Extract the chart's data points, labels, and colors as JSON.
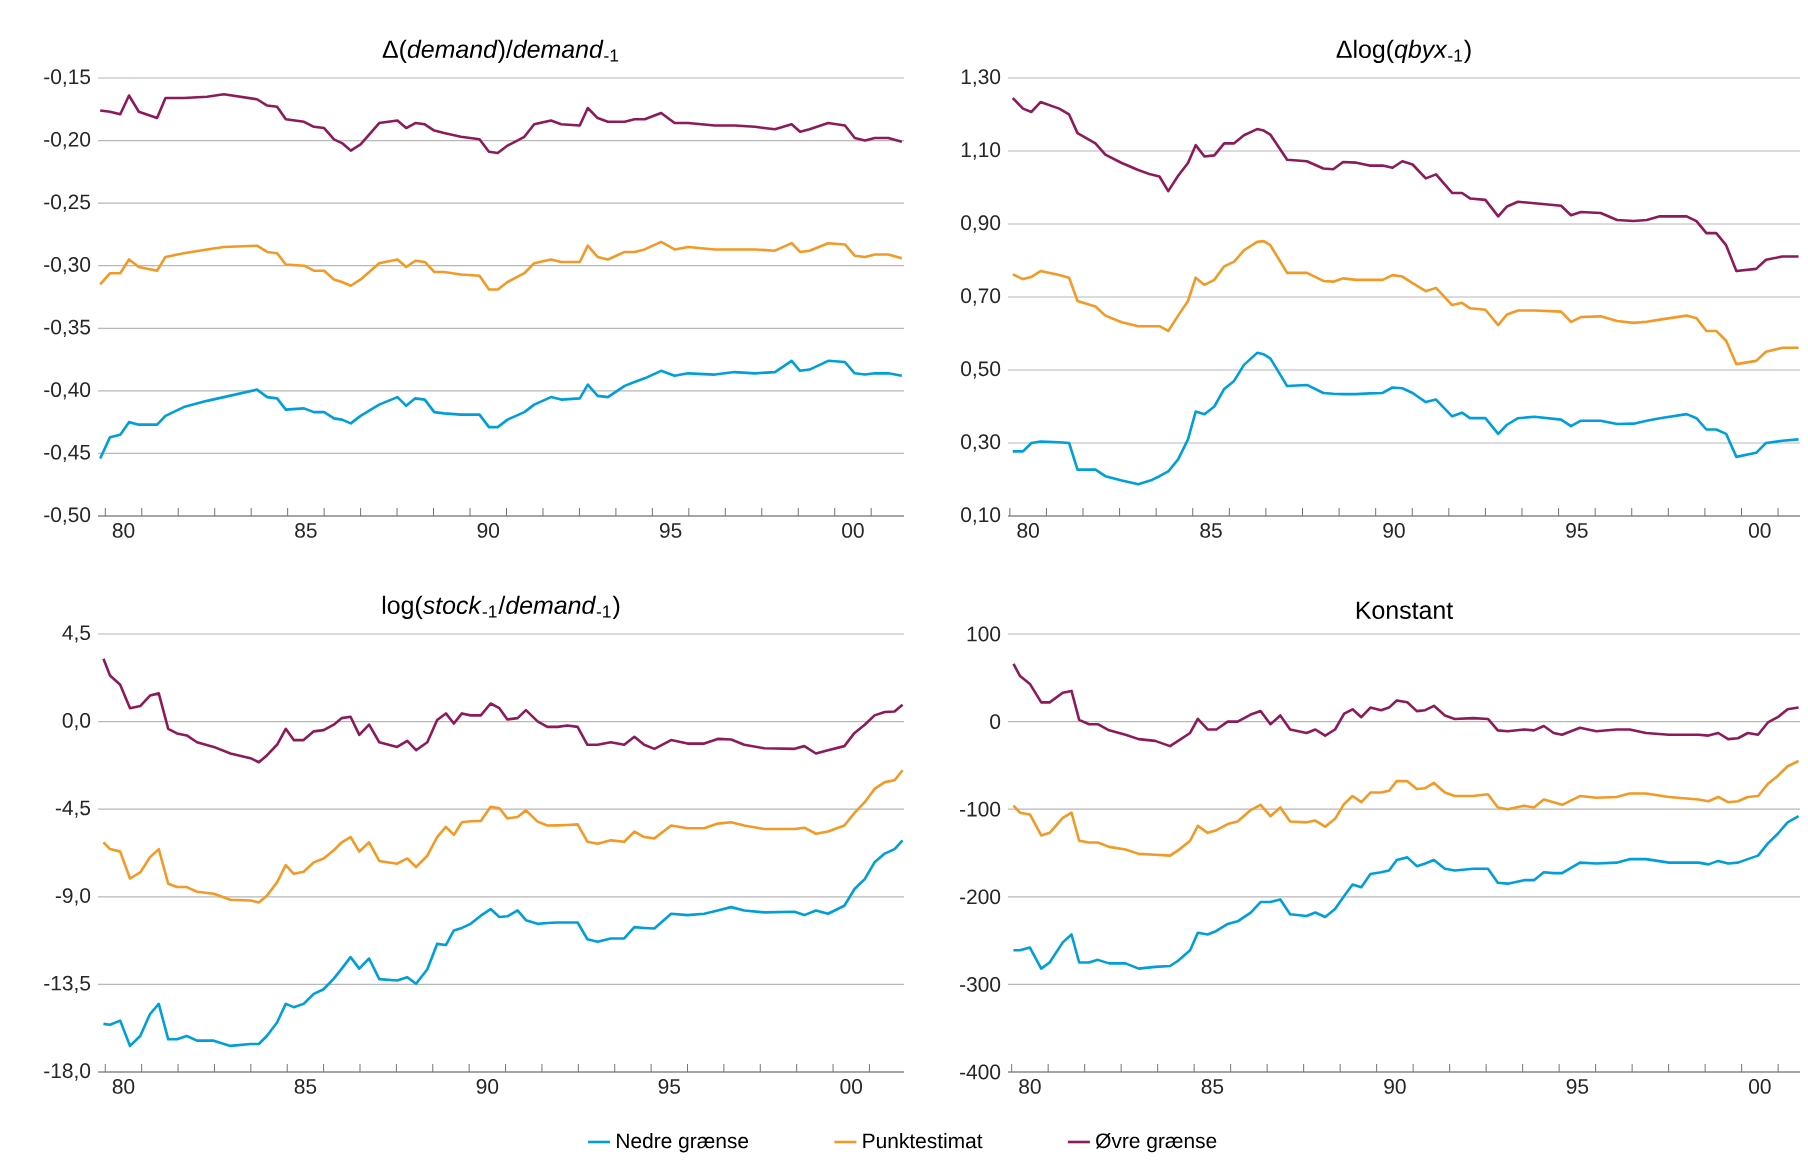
{
  "chart_data": [
    {
      "type": "line",
      "title": "Δ(*demand*)/*demand*$_{-1}$",
      "x": [
        1979.36,
        1979.63,
        1979.91,
        1980.15,
        1980.42,
        1980.92,
        1981.15,
        1981.65,
        1982.29,
        1982.75,
        1983.66,
        1983.94,
        1984.21,
        1984.45,
        1984.95,
        1985.22,
        1985.5,
        1985.77,
        1985.99,
        1986.23,
        1986.5,
        1987.01,
        1987.51,
        1987.75,
        1988.0,
        1988.26,
        1988.52,
        1988.79,
        1989.25,
        1989.76,
        1990.02,
        1990.26,
        1990.53,
        1990.99,
        1991.26,
        1991.72,
        1992.0,
        1992.51,
        1992.73,
        1993.0,
        1993.28,
        1993.74,
        1994.01,
        1994.29,
        1994.74,
        1995.11,
        1995.48,
        1996.21,
        1996.76,
        1997.31,
        1997.86,
        1998.32,
        1998.55,
        1998.81,
        1999.32,
        1999.78,
        2000.05,
        2000.33,
        2000.6,
        2000.97,
        2001.34
      ],
      "series": [
        {
          "color": "#009fda",
          "values": [
            -0.454,
            -0.437,
            -0.435,
            -0.425,
            -0.427,
            -0.427,
            -0.42,
            -0.413,
            -0.408,
            -0.405,
            -0.399,
            -0.405,
            -0.406,
            -0.415,
            -0.414,
            -0.417,
            -0.417,
            -0.422,
            -0.423,
            -0.426,
            -0.42,
            -0.411,
            -0.405,
            -0.412,
            -0.406,
            -0.407,
            -0.417,
            -0.418,
            -0.419,
            -0.419,
            -0.429,
            -0.429,
            -0.423,
            -0.417,
            -0.411,
            -0.405,
            -0.407,
            -0.406,
            -0.395,
            -0.404,
            -0.405,
            -0.396,
            -0.393,
            -0.39,
            -0.384,
            -0.388,
            -0.386,
            -0.387,
            -0.385,
            -0.386,
            -0.385,
            -0.376,
            -0.384,
            -0.383,
            -0.376,
            -0.377,
            -0.386,
            -0.387,
            -0.386,
            -0.386,
            -0.388
          ]
        },
        {
          "color": "#f39a26",
          "values": [
            -0.315,
            -0.306,
            -0.306,
            -0.295,
            -0.301,
            -0.304,
            -0.293,
            -0.29,
            -0.287,
            -0.285,
            -0.284,
            -0.289,
            -0.29,
            -0.299,
            -0.3,
            -0.304,
            -0.304,
            -0.311,
            -0.313,
            -0.316,
            -0.311,
            -0.298,
            -0.295,
            -0.301,
            -0.296,
            -0.297,
            -0.305,
            -0.305,
            -0.307,
            -0.308,
            -0.319,
            -0.319,
            -0.313,
            -0.306,
            -0.298,
            -0.295,
            -0.297,
            -0.297,
            -0.284,
            -0.293,
            -0.295,
            -0.289,
            -0.289,
            -0.287,
            -0.281,
            -0.287,
            -0.285,
            -0.287,
            -0.287,
            -0.287,
            -0.288,
            -0.282,
            -0.289,
            -0.288,
            -0.282,
            -0.283,
            -0.292,
            -0.293,
            -0.291,
            -0.291,
            -0.294
          ]
        },
        {
          "color": "#8d1a5a",
          "values": [
            -0.176,
            -0.177,
            -0.179,
            -0.164,
            -0.177,
            -0.182,
            -0.166,
            -0.166,
            -0.165,
            -0.163,
            -0.167,
            -0.172,
            -0.173,
            -0.183,
            -0.185,
            -0.189,
            -0.19,
            -0.199,
            -0.202,
            -0.208,
            -0.203,
            -0.186,
            -0.184,
            -0.19,
            -0.186,
            -0.187,
            -0.192,
            -0.194,
            -0.197,
            -0.199,
            -0.209,
            -0.21,
            -0.204,
            -0.197,
            -0.187,
            -0.184,
            -0.187,
            -0.188,
            -0.174,
            -0.182,
            -0.185,
            -0.185,
            -0.183,
            -0.183,
            -0.178,
            -0.186,
            -0.186,
            -0.188,
            -0.188,
            -0.189,
            -0.191,
            -0.187,
            -0.193,
            -0.191,
            -0.186,
            -0.188,
            -0.198,
            -0.2,
            -0.198,
            -0.198,
            -0.201
          ]
        }
      ],
      "xlim": [
        1979.3,
        2001.4
      ],
      "ylim": [
        -0.5,
        -0.15
      ],
      "xticks": [
        {
          "value": 1979.5,
          "label": null
        },
        {
          "value": 1980,
          "label": "80"
        },
        {
          "value": 1980.5,
          "label": null
        },
        {
          "value": 1981.5,
          "label": null
        },
        {
          "value": 1982.5,
          "label": null
        },
        {
          "value": 1983.5,
          "label": null
        },
        {
          "value": 1984.5,
          "label": null
        },
        {
          "value": 1985,
          "label": "85"
        },
        {
          "value": 1985.5,
          "label": null
        },
        {
          "value": 1986.5,
          "label": null
        },
        {
          "value": 1987.5,
          "label": null
        },
        {
          "value": 1988.5,
          "label": null
        },
        {
          "value": 1989.5,
          "label": null
        },
        {
          "value": 1990,
          "label": "90"
        },
        {
          "value": 1990.5,
          "label": null
        },
        {
          "value": 1991.5,
          "label": null
        },
        {
          "value": 1992.5,
          "label": null
        },
        {
          "value": 1993.5,
          "label": null
        },
        {
          "value": 1994.5,
          "label": null
        },
        {
          "value": 1995,
          "label": "95"
        },
        {
          "value": 1995.5,
          "label": null
        },
        {
          "value": 1996.5,
          "label": null
        },
        {
          "value": 1997.5,
          "label": null
        },
        {
          "value": 1998.5,
          "label": null
        },
        {
          "value": 1999.5,
          "label": null
        },
        {
          "value": 2000,
          "label": "00"
        },
        {
          "value": 2000.5,
          "label": null
        }
      ],
      "yticks": [
        {
          "value": -0.5,
          "label": "-0,50"
        },
        {
          "value": -0.45,
          "label": "-0,45"
        },
        {
          "value": -0.4,
          "label": "-0,40"
        },
        {
          "value": -0.35,
          "label": "-0,35"
        },
        {
          "value": -0.3,
          "label": "-0,30"
        },
        {
          "value": -0.25,
          "label": "-0,25"
        },
        {
          "value": -0.2,
          "label": "-0,20"
        },
        {
          "value": -0.15,
          "label": "-0,15"
        }
      ],
      "grid": "y"
    },
    {
      "type": "line",
      "title": "Δlog(*qbyx*$_{-1}$)",
      "x": [
        1979.58,
        1979.86,
        1980.09,
        1980.34,
        1980.85,
        1981.12,
        1981.35,
        1981.84,
        1982.11,
        1982.56,
        1983.01,
        1983.34,
        1983.59,
        1983.83,
        1984.1,
        1984.37,
        1984.58,
        1984.82,
        1985.09,
        1985.36,
        1985.63,
        1985.9,
        1986.26,
        1986.44,
        1986.62,
        1987.08,
        1987.62,
        1988.07,
        1988.34,
        1988.61,
        1988.97,
        1989.33,
        1989.69,
        1989.96,
        1990.23,
        1990.51,
        1990.87,
        1991.15,
        1991.59,
        1991.86,
        1992.08,
        1992.5,
        1992.85,
        1993.09,
        1993.39,
        1993.84,
        1994.57,
        1994.84,
        1995.11,
        1995.65,
        1996.1,
        1996.55,
        1996.91,
        1997.27,
        1998.0,
        1998.27,
        1998.54,
        1998.81,
        1999.08,
        1999.36,
        1999.9,
        2000.17,
        2000.62,
        2001.06
      ],
      "series": [
        {
          "color": "#009fda",
          "values": [
            0.277,
            0.277,
            0.3,
            0.304,
            0.302,
            0.3,
            0.227,
            0.227,
            0.209,
            0.197,
            0.187,
            0.197,
            0.209,
            0.222,
            0.255,
            0.31,
            0.386,
            0.379,
            0.4,
            0.448,
            0.47,
            0.514,
            0.547,
            0.543,
            0.532,
            0.456,
            0.459,
            0.437,
            0.435,
            0.434,
            0.434,
            0.436,
            0.437,
            0.452,
            0.45,
            0.437,
            0.412,
            0.419,
            0.373,
            0.383,
            0.368,
            0.368,
            0.325,
            0.35,
            0.368,
            0.372,
            0.364,
            0.346,
            0.361,
            0.361,
            0.352,
            0.353,
            0.361,
            0.368,
            0.379,
            0.368,
            0.337,
            0.337,
            0.325,
            0.262,
            0.273,
            0.3,
            0.306,
            0.31
          ]
        },
        {
          "color": "#f39a26",
          "values": [
            0.762,
            0.749,
            0.755,
            0.771,
            0.76,
            0.753,
            0.689,
            0.674,
            0.649,
            0.631,
            0.62,
            0.62,
            0.62,
            0.607,
            0.649,
            0.689,
            0.753,
            0.733,
            0.747,
            0.784,
            0.797,
            0.828,
            0.851,
            0.853,
            0.842,
            0.766,
            0.766,
            0.744,
            0.742,
            0.751,
            0.747,
            0.747,
            0.747,
            0.76,
            0.756,
            0.738,
            0.716,
            0.725,
            0.678,
            0.684,
            0.669,
            0.665,
            0.623,
            0.652,
            0.663,
            0.663,
            0.66,
            0.632,
            0.645,
            0.647,
            0.634,
            0.629,
            0.632,
            0.638,
            0.649,
            0.642,
            0.607,
            0.607,
            0.58,
            0.516,
            0.525,
            0.55,
            0.561,
            0.561
          ]
        },
        {
          "color": "#8d1a5a",
          "values": [
            1.245,
            1.216,
            1.207,
            1.234,
            1.216,
            1.2,
            1.149,
            1.121,
            1.09,
            1.067,
            1.048,
            1.036,
            1.03,
            0.99,
            1.032,
            1.067,
            1.116,
            1.085,
            1.088,
            1.121,
            1.121,
            1.143,
            1.16,
            1.156,
            1.145,
            1.076,
            1.072,
            1.052,
            1.05,
            1.07,
            1.068,
            1.06,
            1.06,
            1.054,
            1.072,
            1.063,
            1.025,
            1.036,
            0.985,
            0.985,
            0.97,
            0.966,
            0.921,
            0.948,
            0.961,
            0.957,
            0.95,
            0.924,
            0.933,
            0.93,
            0.911,
            0.908,
            0.911,
            0.921,
            0.921,
            0.908,
            0.875,
            0.875,
            0.842,
            0.771,
            0.777,
            0.802,
            0.811,
            0.811
          ]
        }
      ],
      "xlim": [
        1979.45,
        2001.1
      ],
      "ylim": [
        0.1,
        1.3
      ],
      "xticks": [
        {
          "value": 1979.5,
          "label": null
        },
        {
          "value": 1980,
          "label": "80"
        },
        {
          "value": 1980.5,
          "label": null
        },
        {
          "value": 1981.5,
          "label": null
        },
        {
          "value": 1982.5,
          "label": null
        },
        {
          "value": 1983.5,
          "label": null
        },
        {
          "value": 1984.5,
          "label": null
        },
        {
          "value": 1985,
          "label": "85"
        },
        {
          "value": 1985.5,
          "label": null
        },
        {
          "value": 1986.5,
          "label": null
        },
        {
          "value": 1987.5,
          "label": null
        },
        {
          "value": 1988.5,
          "label": null
        },
        {
          "value": 1989.5,
          "label": null
        },
        {
          "value": 1990,
          "label": "90"
        },
        {
          "value": 1990.5,
          "label": null
        },
        {
          "value": 1991.5,
          "label": null
        },
        {
          "value": 1992.5,
          "label": null
        },
        {
          "value": 1993.5,
          "label": null
        },
        {
          "value": 1994.5,
          "label": null
        },
        {
          "value": 1995,
          "label": "95"
        },
        {
          "value": 1995.5,
          "label": null
        },
        {
          "value": 1996.5,
          "label": null
        },
        {
          "value": 1997.5,
          "label": null
        },
        {
          "value": 1998.5,
          "label": null
        },
        {
          "value": 1999.5,
          "label": null
        },
        {
          "value": 2000,
          "label": "00"
        },
        {
          "value": 2000.5,
          "label": null
        }
      ],
      "yticks": [
        {
          "value": 0.1,
          "label": "0,10"
        },
        {
          "value": 0.3,
          "label": "0,30"
        },
        {
          "value": 0.5,
          "label": "0,50"
        },
        {
          "value": 0.7,
          "label": "0,70"
        },
        {
          "value": 0.9,
          "label": "0,90"
        },
        {
          "value": 1.1,
          "label": "1,10"
        },
        {
          "value": 1.3,
          "label": "1,30"
        }
      ],
      "grid": "y"
    },
    {
      "type": "line",
      "title": "log(*stock*$_{-1}$/*demand*$_{-1}$)",
      "x": [
        1979.45,
        1979.63,
        1979.91,
        1980.18,
        1980.46,
        1980.73,
        1980.97,
        1981.23,
        1981.47,
        1981.74,
        1982.02,
        1982.48,
        1982.94,
        1983.49,
        1983.72,
        1983.94,
        1984.22,
        1984.46,
        1984.68,
        1984.95,
        1985.23,
        1985.5,
        1985.78,
        1986.0,
        1986.24,
        1986.48,
        1986.75,
        1987.03,
        1987.52,
        1987.8,
        1988.04,
        1988.35,
        1988.62,
        1988.86,
        1989.08,
        1989.3,
        1989.54,
        1989.82,
        1990.09,
        1990.33,
        1990.55,
        1990.83,
        1991.06,
        1991.38,
        1991.65,
        1991.93,
        1992.2,
        1992.48,
        1992.75,
        1993.03,
        1993.39,
        1993.76,
        1994.04,
        1994.31,
        1994.59,
        1995.05,
        1995.5,
        1995.96,
        1996.33,
        1996.7,
        1997.06,
        1997.61,
        1998.44,
        1998.71,
        1999.03,
        1999.36,
        1999.81,
        2000.09,
        2000.37,
        2000.64,
        2000.92,
        2001.19,
        2001.41
      ],
      "series": [
        {
          "name": "Nedre grænse",
          "color": "#009fda",
          "values": [
            -15.53,
            -15.57,
            -15.36,
            -16.66,
            -16.15,
            -15.02,
            -14.5,
            -16.32,
            -16.32,
            -16.15,
            -16.39,
            -16.39,
            -16.66,
            -16.56,
            -16.56,
            -16.15,
            -15.46,
            -14.5,
            -14.67,
            -14.5,
            -13.99,
            -13.75,
            -13.2,
            -12.69,
            -12.1,
            -12.69,
            -12.17,
            -13.23,
            -13.3,
            -13.13,
            -13.47,
            -12.72,
            -11.42,
            -11.48,
            -10.73,
            -10.6,
            -10.39,
            -9.97,
            -9.63,
            -10.04,
            -10.0,
            -9.7,
            -10.2,
            -10.39,
            -10.35,
            -10.32,
            -10.32,
            -10.32,
            -11.18,
            -11.31,
            -11.14,
            -11.14,
            -10.56,
            -10.6,
            -10.63,
            -9.87,
            -9.94,
            -9.87,
            -9.7,
            -9.53,
            -9.7,
            -9.8,
            -9.77,
            -9.94,
            -9.7,
            -9.87,
            -9.46,
            -8.6,
            -8.09,
            -7.23,
            -6.78,
            -6.55,
            -6.1
          ]
        },
        {
          "name": "Punktestimat",
          "color": "#f39a26",
          "values": [
            -6.2,
            -6.55,
            -6.68,
            -8.06,
            -7.75,
            -6.96,
            -6.55,
            -8.33,
            -8.5,
            -8.5,
            -8.74,
            -8.84,
            -9.15,
            -9.19,
            -9.29,
            -8.95,
            -8.26,
            -7.37,
            -7.82,
            -7.71,
            -7.23,
            -7.03,
            -6.61,
            -6.2,
            -5.93,
            -6.68,
            -6.2,
            -7.16,
            -7.3,
            -7.03,
            -7.47,
            -6.89,
            -5.93,
            -5.41,
            -5.82,
            -5.17,
            -5.12,
            -5.1,
            -4.38,
            -4.45,
            -4.97,
            -4.9,
            -4.56,
            -5.14,
            -5.34,
            -5.33,
            -5.31,
            -5.28,
            -6.17,
            -6.27,
            -6.1,
            -6.17,
            -5.65,
            -5.93,
            -6.0,
            -5.34,
            -5.48,
            -5.48,
            -5.24,
            -5.17,
            -5.34,
            -5.52,
            -5.52,
            -5.45,
            -5.76,
            -5.65,
            -5.34,
            -4.69,
            -4.14,
            -3.46,
            -3.11,
            -3.01,
            -2.5
          ]
        },
        {
          "name": "Øvre grænse",
          "color": "#8d1a5a",
          "values": [
            3.23,
            2.37,
            1.89,
            0.69,
            0.8,
            1.34,
            1.45,
            -0.37,
            -0.61,
            -0.71,
            -1.06,
            -1.3,
            -1.64,
            -1.88,
            -2.09,
            -1.74,
            -1.19,
            -0.37,
            -0.95,
            -0.95,
            -0.5,
            -0.44,
            -0.16,
            0.18,
            0.25,
            -0.68,
            -0.16,
            -1.06,
            -1.3,
            -0.99,
            -1.47,
            -1.06,
            0.08,
            0.42,
            -0.1,
            0.42,
            0.32,
            0.32,
            0.93,
            0.69,
            0.11,
            0.18,
            0.59,
            0.01,
            -0.27,
            -0.27,
            -0.2,
            -0.27,
            -1.19,
            -1.19,
            -1.06,
            -1.19,
            -0.78,
            -1.19,
            -1.4,
            -0.95,
            -1.13,
            -1.13,
            -0.89,
            -0.92,
            -1.19,
            -1.37,
            -1.4,
            -1.26,
            -1.64,
            -1.47,
            -1.26,
            -0.58,
            -0.16,
            0.32,
            0.49,
            0.52,
            0.86
          ]
        }
      ],
      "xlim": [
        1979.3,
        2001.45
      ],
      "ylim": [
        -18,
        4.5
      ],
      "xticks": [
        {
          "value": 1979.5,
          "label": null
        },
        {
          "value": 1980,
          "label": "80"
        },
        {
          "value": 1980.5,
          "label": null
        },
        {
          "value": 1981.5,
          "label": null
        },
        {
          "value": 1982.5,
          "label": null
        },
        {
          "value": 1983.5,
          "label": null
        },
        {
          "value": 1984.5,
          "label": null
        },
        {
          "value": 1985,
          "label": "85"
        },
        {
          "value": 1985.5,
          "label": null
        },
        {
          "value": 1986.5,
          "label": null
        },
        {
          "value": 1987.5,
          "label": null
        },
        {
          "value": 1988.5,
          "label": null
        },
        {
          "value": 1989.5,
          "label": null
        },
        {
          "value": 1990,
          "label": "90"
        },
        {
          "value": 1990.5,
          "label": null
        },
        {
          "value": 1991.5,
          "label": null
        },
        {
          "value": 1992.5,
          "label": null
        },
        {
          "value": 1993.5,
          "label": null
        },
        {
          "value": 1994.5,
          "label": null
        },
        {
          "value": 1995,
          "label": "95"
        },
        {
          "value": 1995.5,
          "label": null
        },
        {
          "value": 1996.5,
          "label": null
        },
        {
          "value": 1997.5,
          "label": null
        },
        {
          "value": 1998.5,
          "label": null
        },
        {
          "value": 1999.5,
          "label": null
        },
        {
          "value": 2000,
          "label": "00"
        },
        {
          "value": 2000.5,
          "label": null
        }
      ],
      "yticks": [
        {
          "value": -18,
          "label": "-18,0"
        },
        {
          "value": -13.5,
          "label": "-13,5"
        },
        {
          "value": -9,
          "label": "-9,0"
        },
        {
          "value": -4.5,
          "label": "-4,5"
        },
        {
          "value": 0,
          "label": "0,0"
        },
        {
          "value": 4.5,
          "label": "4,5"
        }
      ],
      "grid": "y",
      "legend": "bottom"
    },
    {
      "type": "line",
      "title": "Konstant",
      "x": [
        1979.55,
        1979.73,
        1980.0,
        1980.31,
        1980.54,
        1980.9,
        1981.14,
        1981.35,
        1981.62,
        1981.86,
        1982.17,
        1982.62,
        1982.98,
        1983.43,
        1983.84,
        1984.06,
        1984.39,
        1984.6,
        1984.87,
        1985.11,
        1985.42,
        1985.69,
        1986.05,
        1986.32,
        1986.59,
        1986.86,
        1987.13,
        1987.58,
        1987.82,
        1988.09,
        1988.36,
        1988.61,
        1988.84,
        1989.08,
        1989.33,
        1989.62,
        1989.84,
        1990.05,
        1990.34,
        1990.6,
        1990.83,
        1991.07,
        1991.37,
        1991.64,
        1992.15,
        1992.55,
        1992.82,
        1993.09,
        1993.54,
        1993.81,
        1994.08,
        1994.35,
        1994.58,
        1995.07,
        1995.52,
        1996.07,
        1996.43,
        1996.88,
        1997.51,
        1998.32,
        1998.59,
        1998.86,
        1999.13,
        1999.4,
        1999.67,
        1999.95,
        2000.22,
        2000.49,
        2000.76,
        2001.06
      ],
      "series": [
        {
          "color": "#009fda",
          "values": [
            -261,
            -261,
            -258,
            -282,
            -275,
            -252,
            -243,
            -275,
            -275,
            -272,
            -276,
            -276,
            -282,
            -280,
            -279,
            -273,
            -261,
            -241,
            -243,
            -239,
            -231,
            -228,
            -218,
            -206,
            -206,
            -203,
            -220,
            -222,
            -218,
            -223,
            -214,
            -199,
            -186,
            -189,
            -174,
            -172,
            -170,
            -158,
            -155,
            -165,
            -162,
            -158,
            -168,
            -170,
            -168,
            -168,
            -184,
            -185,
            -181,
            -181,
            -172,
            -173,
            -173,
            -161,
            -162,
            -161,
            -157,
            -157,
            -161,
            -161,
            -163,
            -159,
            -162,
            -161,
            -157,
            -153,
            -139,
            -128,
            -115,
            -108
          ]
        },
        {
          "color": "#f39a26",
          "values": [
            -96,
            -104,
            -106,
            -130,
            -127,
            -110,
            -104,
            -136,
            -138,
            -138,
            -143,
            -146,
            -151,
            -152,
            -153,
            -147,
            -136,
            -119,
            -127,
            -124,
            -117,
            -114,
            -101,
            -95,
            -108,
            -98,
            -114,
            -115,
            -113,
            -120,
            -111,
            -94,
            -85,
            -92,
            -81,
            -81,
            -79,
            -68,
            -68,
            -77,
            -76,
            -70,
            -81,
            -85,
            -85,
            -83,
            -98,
            -100,
            -96,
            -98,
            -89,
            -92,
            -95,
            -85,
            -87,
            -86,
            -82,
            -82,
            -86,
            -89,
            -91,
            -86,
            -92,
            -91,
            -86,
            -85,
            -71,
            -62,
            -51,
            -45
          ]
        },
        {
          "color": "#8d1a5a",
          "values": [
            66,
            52,
            43,
            22,
            22,
            33,
            35,
            2,
            -3,
            -3,
            -10,
            -15,
            -20,
            -22,
            -28,
            -22,
            -13,
            3,
            -9,
            -9,
            0,
            0,
            8,
            12,
            -3,
            7,
            -9,
            -13,
            -9,
            -16,
            -9,
            9,
            14,
            5,
            16,
            13,
            16,
            24,
            22,
            12,
            13,
            18,
            7,
            3,
            4,
            3,
            -10,
            -11,
            -9,
            -10,
            -5,
            -13,
            -15,
            -7,
            -11,
            -9,
            -9,
            -13,
            -15,
            -15,
            -16,
            -13,
            -20,
            -19,
            -13,
            -15,
            -1,
            5,
            14,
            16
          ]
        }
      ],
      "xlim": [
        1979.4,
        2001.1
      ],
      "ylim": [
        -400,
        100
      ],
      "xticks": [
        {
          "value": 1979.5,
          "label": null
        },
        {
          "value": 1980,
          "label": "80"
        },
        {
          "value": 1980.5,
          "label": null
        },
        {
          "value": 1981.5,
          "label": null
        },
        {
          "value": 1982.5,
          "label": null
        },
        {
          "value": 1983.5,
          "label": null
        },
        {
          "value": 1984.5,
          "label": null
        },
        {
          "value": 1985,
          "label": "85"
        },
        {
          "value": 1985.5,
          "label": null
        },
        {
          "value": 1986.5,
          "label": null
        },
        {
          "value": 1987.5,
          "label": null
        },
        {
          "value": 1988.5,
          "label": null
        },
        {
          "value": 1989.5,
          "label": null
        },
        {
          "value": 1990,
          "label": "90"
        },
        {
          "value": 1990.5,
          "label": null
        },
        {
          "value": 1991.5,
          "label": null
        },
        {
          "value": 1992.5,
          "label": null
        },
        {
          "value": 1993.5,
          "label": null
        },
        {
          "value": 1994.5,
          "label": null
        },
        {
          "value": 1995,
          "label": "95"
        },
        {
          "value": 1995.5,
          "label": null
        },
        {
          "value": 1996.5,
          "label": null
        },
        {
          "value": 1997.5,
          "label": null
        },
        {
          "value": 1998.5,
          "label": null
        },
        {
          "value": 1999.5,
          "label": null
        },
        {
          "value": 2000,
          "label": "00"
        },
        {
          "value": 2000.5,
          "label": null
        }
      ],
      "yticks": [
        -400,
        -300,
        -200,
        -100,
        0,
        100
      ],
      "grid": "y"
    }
  ]
}
